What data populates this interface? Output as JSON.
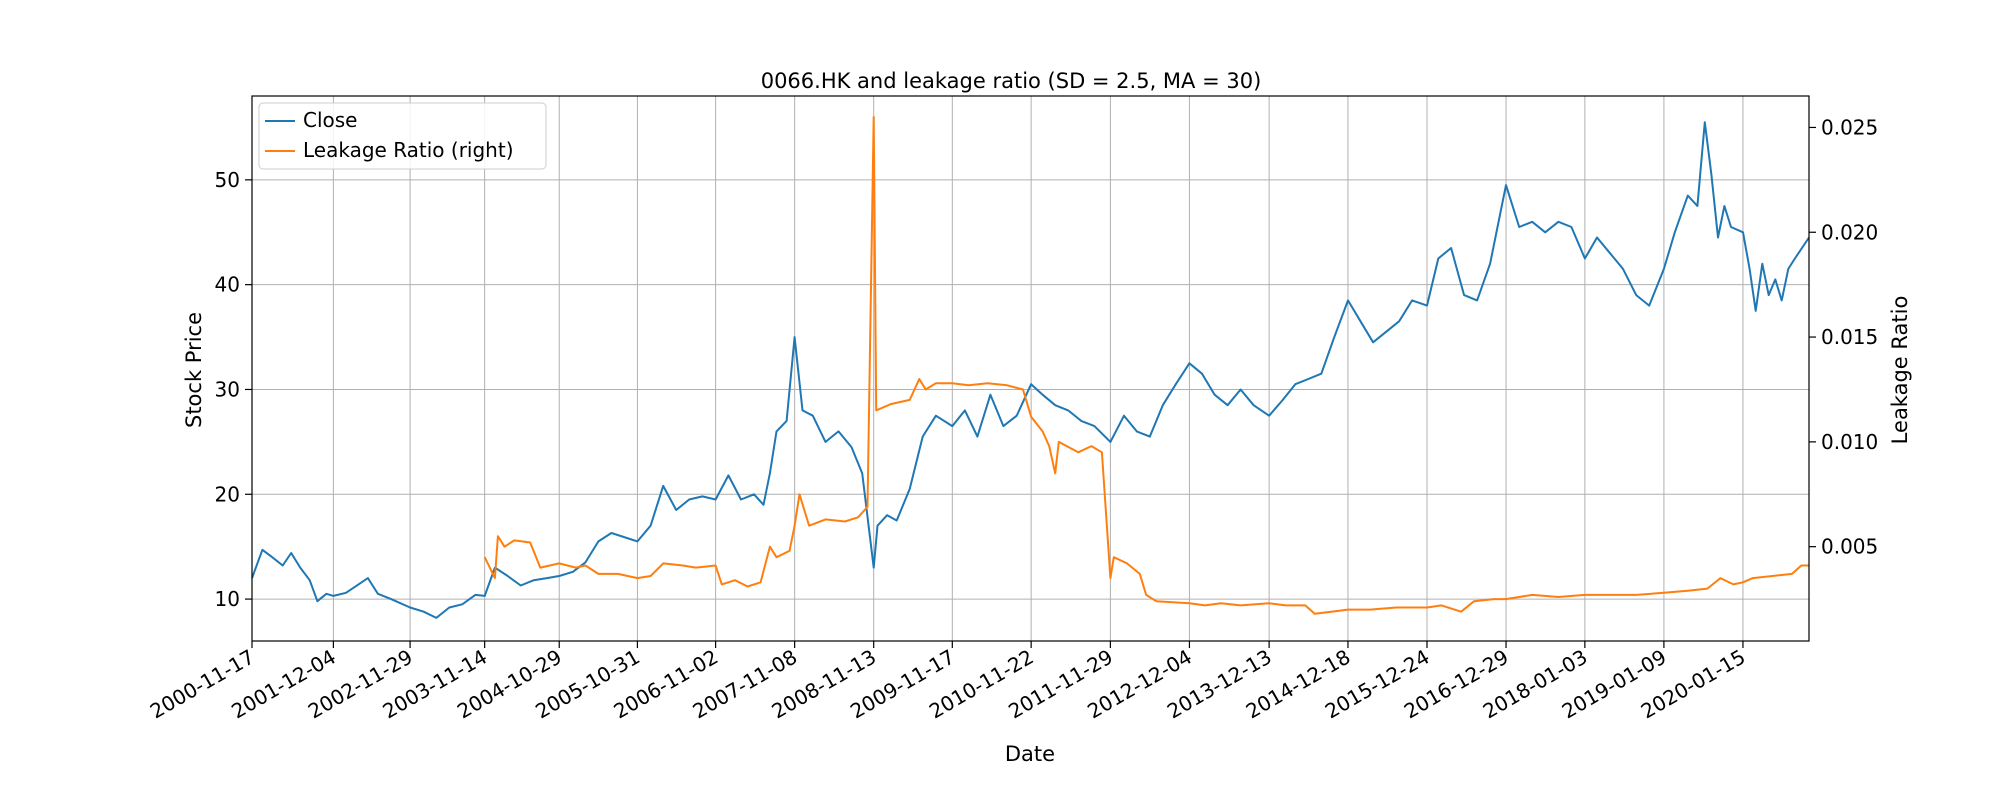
{
  "chart_data": {
    "type": "line",
    "title": "0066.HK and leakage ratio (SD = 2.5, MA = 30)",
    "xlabel": "Date",
    "ylabel": "Stock Price",
    "y2label": "Leakage Ratio",
    "grid": true,
    "legend_position": "top-left",
    "xlim": [
      "2000-11-17",
      "2020-11-20"
    ],
    "ylim": [
      6,
      58
    ],
    "y2lim": [
      0.0005,
      0.0265
    ],
    "x_ticks": [
      "2000-11-17",
      "2001-12-04",
      "2002-11-29",
      "2003-11-14",
      "2004-10-29",
      "2005-10-31",
      "2006-11-02",
      "2007-11-08",
      "2008-11-13",
      "2009-11-17",
      "2010-11-22",
      "2011-11-29",
      "2012-12-04",
      "2013-12-13",
      "2014-12-18",
      "2015-12-24",
      "2016-12-29",
      "2018-01-03",
      "2019-01-09",
      "2020-01-15"
    ],
    "y_ticks": [
      10,
      20,
      30,
      40,
      50
    ],
    "y2_ticks": [
      0.005,
      0.01,
      0.015,
      0.02,
      0.025
    ],
    "series": [
      {
        "name": "Close",
        "axis": "left",
        "color": "#1f77b4",
        "points": [
          [
            "2000-11-17",
            12.0
          ],
          [
            "2001-01-05",
            14.7
          ],
          [
            "2001-02-20",
            14.0
          ],
          [
            "2001-04-10",
            13.2
          ],
          [
            "2001-05-20",
            14.4
          ],
          [
            "2001-07-01",
            13.0
          ],
          [
            "2001-08-15",
            11.8
          ],
          [
            "2001-09-20",
            9.8
          ],
          [
            "2001-11-01",
            10.5
          ],
          [
            "2001-12-04",
            10.3
          ],
          [
            "2002-02-01",
            10.6
          ],
          [
            "2002-04-01",
            11.4
          ],
          [
            "2002-05-15",
            12.0
          ],
          [
            "2002-07-01",
            10.5
          ],
          [
            "2002-09-01",
            10.0
          ],
          [
            "2002-11-29",
            9.2
          ],
          [
            "2003-02-01",
            8.8
          ],
          [
            "2003-04-01",
            8.2
          ],
          [
            "2003-06-01",
            9.2
          ],
          [
            "2003-08-01",
            9.5
          ],
          [
            "2003-10-01",
            10.4
          ],
          [
            "2003-11-14",
            10.3
          ],
          [
            "2004-01-01",
            13.0
          ],
          [
            "2004-03-01",
            12.2
          ],
          [
            "2004-05-01",
            11.3
          ],
          [
            "2004-07-01",
            11.8
          ],
          [
            "2004-09-01",
            12.0
          ],
          [
            "2004-10-29",
            12.2
          ],
          [
            "2005-01-01",
            12.6
          ],
          [
            "2005-03-01",
            13.5
          ],
          [
            "2005-05-01",
            15.5
          ],
          [
            "2005-07-01",
            16.3
          ],
          [
            "2005-10-31",
            15.5
          ],
          [
            "2006-01-01",
            17.0
          ],
          [
            "2006-03-01",
            20.8
          ],
          [
            "2006-05-01",
            18.5
          ],
          [
            "2006-07-01",
            19.5
          ],
          [
            "2006-09-01",
            19.8
          ],
          [
            "2006-11-02",
            19.5
          ],
          [
            "2007-01-01",
            21.8
          ],
          [
            "2007-03-01",
            19.5
          ],
          [
            "2007-05-01",
            20.0
          ],
          [
            "2007-06-15",
            19.0
          ],
          [
            "2007-07-15",
            22.0
          ],
          [
            "2007-08-15",
            26.0
          ],
          [
            "2007-10-01",
            27.0
          ],
          [
            "2007-11-08",
            35.0
          ],
          [
            "2007-12-15",
            28.0
          ],
          [
            "2008-02-01",
            27.5
          ],
          [
            "2008-04-01",
            25.0
          ],
          [
            "2008-06-01",
            26.0
          ],
          [
            "2008-08-01",
            24.5
          ],
          [
            "2008-09-20",
            22.0
          ],
          [
            "2008-10-20",
            17.0
          ],
          [
            "2008-11-13",
            13.0
          ],
          [
            "2008-12-01",
            17.0
          ],
          [
            "2009-01-15",
            18.0
          ],
          [
            "2009-03-01",
            17.5
          ],
          [
            "2009-05-01",
            20.5
          ],
          [
            "2009-07-01",
            25.5
          ],
          [
            "2009-09-01",
            27.5
          ],
          [
            "2009-11-17",
            26.5
          ],
          [
            "2010-01-15",
            28.0
          ],
          [
            "2010-03-15",
            25.5
          ],
          [
            "2010-05-15",
            29.5
          ],
          [
            "2010-07-15",
            26.5
          ],
          [
            "2010-09-15",
            27.5
          ],
          [
            "2010-11-22",
            30.5
          ],
          [
            "2011-01-15",
            29.5
          ],
          [
            "2011-03-15",
            28.5
          ],
          [
            "2011-05-15",
            28.0
          ],
          [
            "2011-07-15",
            27.0
          ],
          [
            "2011-09-15",
            26.5
          ],
          [
            "2011-11-29",
            25.0
          ],
          [
            "2012-02-01",
            27.5
          ],
          [
            "2012-04-01",
            26.0
          ],
          [
            "2012-06-01",
            25.5
          ],
          [
            "2012-08-01",
            28.5
          ],
          [
            "2012-10-01",
            30.5
          ],
          [
            "2012-12-04",
            32.5
          ],
          [
            "2013-02-01",
            31.5
          ],
          [
            "2013-04-01",
            29.5
          ],
          [
            "2013-06-01",
            28.5
          ],
          [
            "2013-08-01",
            30.0
          ],
          [
            "2013-10-01",
            28.5
          ],
          [
            "2013-12-13",
            27.5
          ],
          [
            "2014-02-15",
            29.0
          ],
          [
            "2014-04-15",
            30.5
          ],
          [
            "2014-06-15",
            31.0
          ],
          [
            "2014-08-15",
            31.5
          ],
          [
            "2014-10-15",
            35.0
          ],
          [
            "2014-12-18",
            38.5
          ],
          [
            "2015-02-15",
            36.5
          ],
          [
            "2015-04-15",
            34.5
          ],
          [
            "2015-06-15",
            35.5
          ],
          [
            "2015-08-15",
            36.5
          ],
          [
            "2015-10-15",
            38.5
          ],
          [
            "2015-12-24",
            38.0
          ],
          [
            "2016-02-15",
            42.5
          ],
          [
            "2016-04-15",
            43.5
          ],
          [
            "2016-06-15",
            39.0
          ],
          [
            "2016-08-15",
            38.5
          ],
          [
            "2016-10-15",
            42.0
          ],
          [
            "2016-12-29",
            49.5
          ],
          [
            "2017-03-01",
            45.5
          ],
          [
            "2017-05-01",
            46.0
          ],
          [
            "2017-07-01",
            45.0
          ],
          [
            "2017-09-01",
            46.0
          ],
          [
            "2017-11-01",
            45.5
          ],
          [
            "2018-01-03",
            42.5
          ],
          [
            "2018-03-01",
            44.5
          ],
          [
            "2018-05-01",
            43.0
          ],
          [
            "2018-07-01",
            41.5
          ],
          [
            "2018-09-01",
            39.0
          ],
          [
            "2018-11-01",
            38.0
          ],
          [
            "2019-01-09",
            41.5
          ],
          [
            "2019-03-01",
            45.0
          ],
          [
            "2019-05-01",
            48.5
          ],
          [
            "2019-06-15",
            47.5
          ],
          [
            "2019-07-20",
            55.5
          ],
          [
            "2019-08-20",
            50.5
          ],
          [
            "2019-09-20",
            44.5
          ],
          [
            "2019-10-20",
            47.5
          ],
          [
            "2019-11-20",
            45.5
          ],
          [
            "2020-01-15",
            45.0
          ],
          [
            "2020-02-15",
            41.5
          ],
          [
            "2020-03-15",
            37.5
          ],
          [
            "2020-04-15",
            42.0
          ],
          [
            "2020-05-15",
            39.0
          ],
          [
            "2020-06-15",
            40.5
          ],
          [
            "2020-07-15",
            38.5
          ],
          [
            "2020-08-15",
            41.5
          ],
          [
            "2020-09-15",
            42.5
          ],
          [
            "2020-11-20",
            44.5
          ]
        ]
      },
      {
        "name": "Leakage Ratio (right)",
        "axis": "right",
        "color": "#ff7f0e",
        "points": [
          [
            "2003-11-14",
            0.0045
          ],
          [
            "2004-01-01",
            0.0035
          ],
          [
            "2004-01-15",
            0.0055
          ],
          [
            "2004-02-15",
            0.005
          ],
          [
            "2004-04-01",
            0.0053
          ],
          [
            "2004-06-15",
            0.0052
          ],
          [
            "2004-08-01",
            0.004
          ],
          [
            "2004-10-29",
            0.0042
          ],
          [
            "2005-01-15",
            0.004
          ],
          [
            "2005-03-01",
            0.0041
          ],
          [
            "2005-05-01",
            0.0037
          ],
          [
            "2005-08-01",
            0.0037
          ],
          [
            "2005-10-31",
            0.0035
          ],
          [
            "2006-01-01",
            0.0036
          ],
          [
            "2006-03-01",
            0.0042
          ],
          [
            "2006-06-01",
            0.0041
          ],
          [
            "2006-08-01",
            0.004
          ],
          [
            "2006-11-02",
            0.0041
          ],
          [
            "2006-12-01",
            0.0032
          ],
          [
            "2007-02-01",
            0.0034
          ],
          [
            "2007-04-01",
            0.0031
          ],
          [
            "2007-06-01",
            0.0033
          ],
          [
            "2007-07-15",
            0.005
          ],
          [
            "2007-08-15",
            0.0045
          ],
          [
            "2007-10-15",
            0.0048
          ],
          [
            "2007-11-08",
            0.006
          ],
          [
            "2007-12-01",
            0.0075
          ],
          [
            "2008-01-15",
            0.006
          ],
          [
            "2008-04-01",
            0.0063
          ],
          [
            "2008-07-01",
            0.0062
          ],
          [
            "2008-09-01",
            0.0064
          ],
          [
            "2008-10-15",
            0.0069
          ],
          [
            "2008-11-13",
            0.0255
          ],
          [
            "2008-11-25",
            0.0115
          ],
          [
            "2009-02-01",
            0.0118
          ],
          [
            "2009-05-01",
            0.012
          ],
          [
            "2009-06-15",
            0.013
          ],
          [
            "2009-07-15",
            0.0125
          ],
          [
            "2009-09-01",
            0.0128
          ],
          [
            "2009-11-17",
            0.0128
          ],
          [
            "2010-02-01",
            0.0127
          ],
          [
            "2010-05-01",
            0.0128
          ],
          [
            "2010-08-01",
            0.0127
          ],
          [
            "2010-10-15",
            0.0125
          ],
          [
            "2010-11-22",
            0.0112
          ],
          [
            "2011-01-15",
            0.0105
          ],
          [
            "2011-02-15",
            0.0098
          ],
          [
            "2011-03-15",
            0.0085
          ],
          [
            "2011-04-01",
            0.01
          ],
          [
            "2011-07-01",
            0.0095
          ],
          [
            "2011-09-01",
            0.0098
          ],
          [
            "2011-10-20",
            0.0095
          ],
          [
            "2011-11-29",
            0.0035
          ],
          [
            "2011-12-15",
            0.0045
          ],
          [
            "2012-02-15",
            0.0042
          ],
          [
            "2012-04-15",
            0.0037
          ],
          [
            "2012-05-15",
            0.0027
          ],
          [
            "2012-07-01",
            0.0024
          ],
          [
            "2012-12-04",
            0.0023
          ],
          [
            "2013-02-15",
            0.0022
          ],
          [
            "2013-05-01",
            0.0023
          ],
          [
            "2013-08-01",
            0.0022
          ],
          [
            "2013-12-13",
            0.0023
          ],
          [
            "2014-03-01",
            0.0022
          ],
          [
            "2014-06-01",
            0.0022
          ],
          [
            "2014-07-15",
            0.0018
          ],
          [
            "2014-10-01",
            0.0019
          ],
          [
            "2014-12-18",
            0.002
          ],
          [
            "2015-04-01",
            0.002
          ],
          [
            "2015-08-01",
            0.0021
          ],
          [
            "2015-12-24",
            0.0021
          ],
          [
            "2016-03-01",
            0.0022
          ],
          [
            "2016-06-01",
            0.0019
          ],
          [
            "2016-08-01",
            0.0024
          ],
          [
            "2016-11-01",
            0.0025
          ],
          [
            "2016-12-29",
            0.0025
          ],
          [
            "2017-05-01",
            0.0027
          ],
          [
            "2017-09-01",
            0.0026
          ],
          [
            "2018-01-03",
            0.0027
          ],
          [
            "2018-05-01",
            0.0027
          ],
          [
            "2018-09-01",
            0.0027
          ],
          [
            "2019-01-09",
            0.0028
          ],
          [
            "2019-05-01",
            0.0029
          ],
          [
            "2019-08-01",
            0.003
          ],
          [
            "2019-10-01",
            0.0035
          ],
          [
            "2019-12-01",
            0.0032
          ],
          [
            "2020-01-15",
            0.0033
          ],
          [
            "2020-03-01",
            0.0035
          ],
          [
            "2020-06-01",
            0.0036
          ],
          [
            "2020-09-01",
            0.0037
          ],
          [
            "2020-10-15",
            0.0041
          ],
          [
            "2020-11-20",
            0.0041
          ]
        ]
      }
    ]
  }
}
